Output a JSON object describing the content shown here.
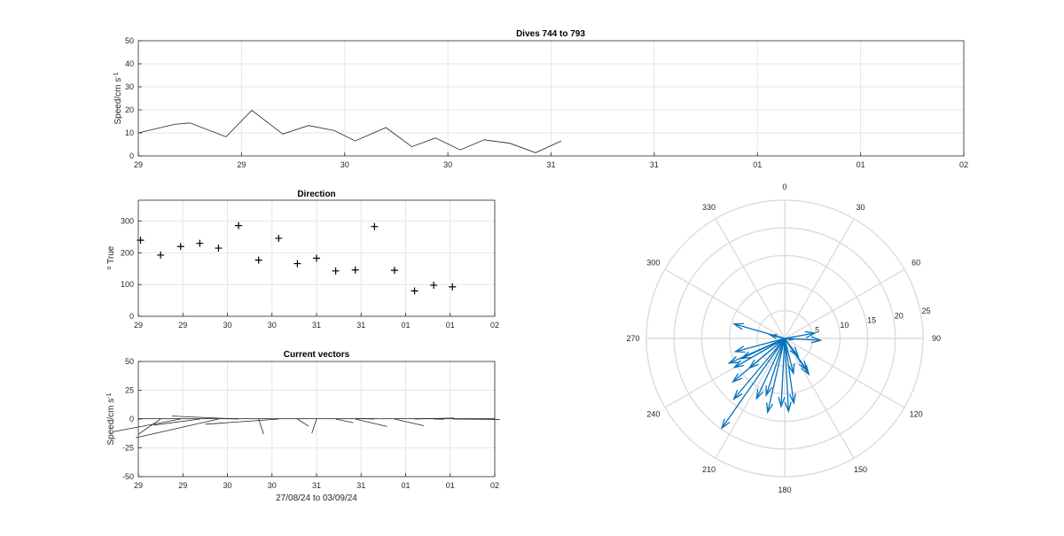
{
  "figure": {
    "speed": {
      "title": "Dives 744 to 793",
      "ylabel_main": "Speed/cm s",
      "ylabel_sup": "-1",
      "xticks": [
        "29",
        "29",
        "30",
        "30",
        "31",
        "31",
        "01",
        "01",
        "02"
      ],
      "yticks": [
        "0",
        "10",
        "20",
        "30",
        "40",
        "50"
      ]
    },
    "direction": {
      "title": "Direction",
      "ylabel_sup": "o",
      "ylabel_main": " True",
      "xticks": [
        "29",
        "29",
        "30",
        "30",
        "31",
        "31",
        "01",
        "01",
        "02"
      ],
      "yticks": [
        "0",
        "100",
        "200",
        "300"
      ]
    },
    "vectors": {
      "title": "Current vectors",
      "ylabel_main": "Speed/cm s",
      "ylabel_sup": "-1",
      "xlabel": "27/08/24 to 03/09/24",
      "xticks": [
        "29",
        "29",
        "30",
        "30",
        "31",
        "31",
        "01",
        "01",
        "02"
      ],
      "yticks": [
        "-50",
        "-25",
        "0",
        "25",
        "50"
      ]
    },
    "polar": {
      "angle_labels": [
        "0",
        "30",
        "60",
        "90",
        "120",
        "150",
        "180",
        "210",
        "240",
        "270",
        "300",
        "330"
      ],
      "radius_labels": [
        "5",
        "10",
        "15",
        "20",
        "25"
      ]
    }
  },
  "chart_data": [
    {
      "type": "line",
      "title": "Dives 744 to 793",
      "ylabel": "Speed/cm s-1",
      "ylim": [
        0,
        50
      ],
      "xlim": [
        0,
        8
      ],
      "x": [
        0,
        0.35,
        0.5,
        0.85,
        1.1,
        1.4,
        1.65,
        1.9,
        2.1,
        2.4,
        2.65,
        2.88,
        3.12,
        3.35,
        3.6,
        3.85,
        4.1,
        4.35,
        4.6
      ],
      "y": [
        10,
        13.7,
        14.3,
        8.3,
        19.8,
        9.5,
        13.2,
        11,
        6.5,
        12.3,
        4,
        7.8,
        2.6,
        7,
        5.5,
        1.4,
        6.5,
        6.5,
        6.5
      ],
      "series_end_index": 16,
      "xticks": [
        "29",
        "29",
        "30",
        "30",
        "31",
        "31",
        "01",
        "01",
        "02"
      ],
      "grid": true,
      "color": "#262626"
    },
    {
      "type": "scatter",
      "title": "Direction",
      "ylabel": "o True",
      "ylim": [
        0,
        360
      ],
      "xlim": [
        0,
        8
      ],
      "marker": "+",
      "x": [
        0.05,
        0.5,
        0.95,
        1.38,
        1.8,
        2.25,
        2.7,
        3.15,
        3.57,
        4.0,
        4.43,
        4.87,
        5.3,
        5.75,
        6.2,
        6.63,
        7.05
      ],
      "y": [
        240,
        193,
        220,
        230,
        215,
        286,
        177,
        246,
        166,
        183,
        143,
        146,
        283,
        145,
        80,
        98,
        93
      ],
      "xticks": [
        "29",
        "29",
        "30",
        "30",
        "31",
        "31",
        "01",
        "01",
        "02"
      ],
      "grid": true
    },
    {
      "type": "line",
      "subtype": "stick-plot",
      "title": "Current vectors",
      "ylabel": "Speed/cm s-1",
      "xlabel": "27/08/24 to 03/09/24",
      "ylim": [
        -50,
        50
      ],
      "xlim": [
        0,
        8
      ],
      "x": [
        0.5,
        0.95,
        1.38,
        1.8,
        2.25,
        2.7,
        3.15,
        3.57,
        4.0,
        4.43,
        4.87,
        5.3,
        5.75,
        6.2,
        6.63,
        7.05
      ],
      "speed": [
        13.7,
        14.3,
        8.3,
        19.8,
        9.5,
        13.2,
        11,
        6.5,
        12.3,
        4,
        7.8,
        2.6,
        7,
        5.5,
        1.4,
        6.5
      ],
      "direction_deg": [
        193,
        220,
        230,
        215,
        286,
        177,
        246,
        166,
        183,
        143,
        146,
        283,
        145,
        80,
        98,
        93
      ],
      "xticks": [
        "29",
        "29",
        "30",
        "30",
        "31",
        "31",
        "01",
        "01",
        "02"
      ],
      "grid": true
    },
    {
      "type": "scatter",
      "subtype": "polar-compass",
      "rlim": [
        0,
        25
      ],
      "theta_direction": "clockwise",
      "theta_zero": "top",
      "color": "#0072BD",
      "vectors": [
        {
          "direction_deg": 193,
          "speed": 13.7
        },
        {
          "direction_deg": 220,
          "speed": 14.3
        },
        {
          "direction_deg": 230,
          "speed": 8.3
        },
        {
          "direction_deg": 215,
          "speed": 19.8
        },
        {
          "direction_deg": 286,
          "speed": 9.5
        },
        {
          "direction_deg": 177,
          "speed": 13.2
        },
        {
          "direction_deg": 246,
          "speed": 11
        },
        {
          "direction_deg": 166,
          "speed": 6.5
        },
        {
          "direction_deg": 183,
          "speed": 12.3
        },
        {
          "direction_deg": 143,
          "speed": 4
        },
        {
          "direction_deg": 146,
          "speed": 7.8
        },
        {
          "direction_deg": 283,
          "speed": 2.6
        },
        {
          "direction_deg": 145,
          "speed": 7
        },
        {
          "direction_deg": 80,
          "speed": 5.5
        },
        {
          "direction_deg": 98,
          "speed": 1.4
        },
        {
          "direction_deg": 93,
          "speed": 6.5
        },
        {
          "direction_deg": 240,
          "speed": 10.5
        },
        {
          "direction_deg": 230,
          "speed": 12.2
        },
        {
          "direction_deg": 198,
          "speed": 10.8
        },
        {
          "direction_deg": 172,
          "speed": 11.8
        },
        {
          "direction_deg": 205,
          "speed": 12.0
        },
        {
          "direction_deg": 245,
          "speed": 8.6
        },
        {
          "direction_deg": 255,
          "speed": 9.2
        }
      ]
    }
  ]
}
